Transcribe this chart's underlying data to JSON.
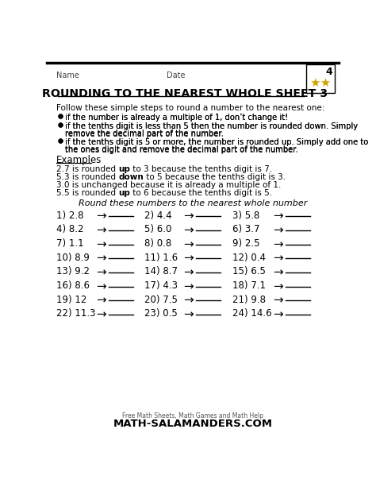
{
  "title": "ROUNDING TO THE NEAREST WHOLE SHEET 3",
  "name_label": "Name",
  "date_label": "Date",
  "bg_color": "#ffffff",
  "text_color": "#000000",
  "intro": "Follow these simple steps to round a number to the nearest one:",
  "bullets": [
    "if the number is already a multiple of 1, don’t change it!",
    "if the tenths digit is less than 5 then the number is rounded down. Simply\nremove the decimal part of the number.",
    "if the tenths digit is 5 or more, the number is rounded up. Simply add one to\nthe ones digit and remove the decimal part of the number."
  ],
  "examples_label": "Examples",
  "examples": [
    {
      "parts": [
        "2.7 is rounded ",
        "up",
        " to 3 because the tenths digit is 7."
      ],
      "bold": [
        false,
        true,
        false
      ]
    },
    {
      "parts": [
        "5.3 is rounded ",
        "down",
        " to 5 because the tenths digit is 3."
      ],
      "bold": [
        false,
        true,
        false
      ]
    },
    {
      "parts": [
        "3.0 is unchanged because it is already a multiple of 1."
      ],
      "bold": [
        false
      ]
    },
    {
      "parts": [
        "5.5 is rounded ",
        "up",
        " to 6 because the tenths digit is 5."
      ],
      "bold": [
        false,
        true,
        false
      ]
    }
  ],
  "round_instruction": "Round these numbers to the nearest whole number",
  "problems": [
    [
      "1) 2.8",
      "2) 4.4",
      "3) 5.8"
    ],
    [
      "4) 8.2",
      "5) 6.0",
      "6) 3.7"
    ],
    [
      "7) 1.1",
      "8) 0.8",
      "9) 2.5"
    ],
    [
      "10) 8.9",
      "11) 1.6",
      "12) 0.4"
    ],
    [
      "13) 9.2",
      "14) 8.7",
      "15) 6.5"
    ],
    [
      "16) 8.6",
      "17) 4.3",
      "18) 7.1"
    ],
    [
      "19) 12",
      "20) 7.5",
      "21) 9.8"
    ],
    [
      "22) 11.3",
      "23) 0.5",
      "24) 14.6"
    ]
  ],
  "footer_small": "Free Math Sheets, Math Games and Math Help",
  "footer_big": "ATH-SALAMANDERS.COM"
}
